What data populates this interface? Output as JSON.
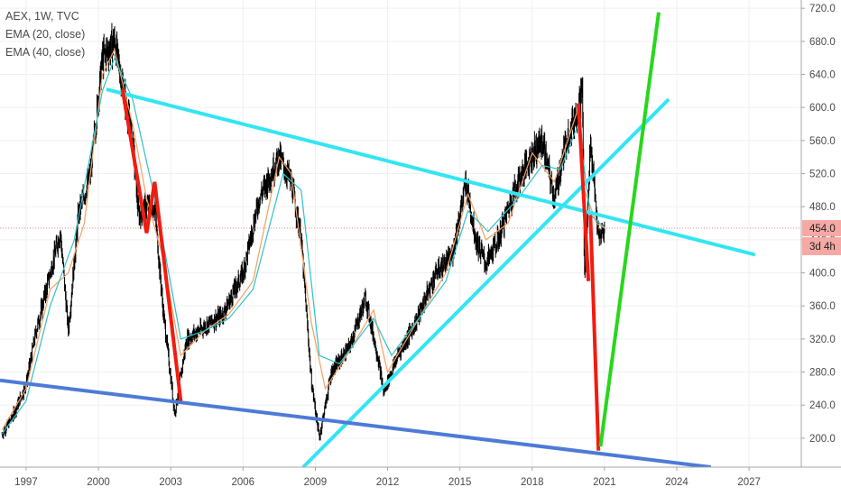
{
  "legend": {
    "symbol": "AEX, 1W, TVC",
    "ema20": "EMA (20, close)",
    "ema40": "EMA (40, close)"
  },
  "colors": {
    "background": "#ffffff",
    "grid": "#eef0f3",
    "candle": "#000000",
    "ema20": "#f5a064",
    "ema40": "#2fc1c9",
    "cyan_line": "#33e5f2",
    "blue_line": "#4d7bd6",
    "red_line": "#f21b0f",
    "green_line": "#28d71c",
    "price_marker": "#f08080",
    "price_label_bg": "#f5a9a5",
    "price_label_text": "#1f1f1f",
    "axis_text": "#4a4a4a"
  },
  "price_label": "454.0",
  "time_label": "3d 4h",
  "chart_data": {
    "type": "line",
    "series": [
      {
        "name": "AEX, 1W, TVC",
        "x": [
          "1996-01",
          "1996-06",
          "1997-01",
          "1997-06",
          "1998-01",
          "1998-06",
          "1998-10",
          "1999-03",
          "1999-09",
          "2000-03",
          "2000-09",
          "2001-03",
          "2001-06",
          "2001-09",
          "2002-01",
          "2002-05",
          "2002-09",
          "2003-03",
          "2003-09",
          "2004-06",
          "2005-03",
          "2006-01",
          "2006-09",
          "2007-07",
          "2008-01",
          "2008-06",
          "2008-11",
          "2009-03",
          "2009-09",
          "2010-06",
          "2011-02",
          "2011-08",
          "2011-11",
          "2012-06",
          "2013-03",
          "2014-01",
          "2014-09",
          "2015-04",
          "2015-09",
          "2016-02",
          "2016-08",
          "2017-04",
          "2017-12",
          "2018-06",
          "2018-12",
          "2019-06",
          "2019-12",
          "2020-02",
          "2020-03",
          "2020-06",
          "2020-10",
          "2021-01"
        ],
        "values": [
          205,
          225,
          265,
          330,
          400,
          450,
          330,
          470,
          520,
          660,
          680,
          600,
          560,
          470,
          480,
          480,
          360,
          230,
          320,
          335,
          350,
          400,
          490,
          540,
          510,
          440,
          270,
          200,
          280,
          310,
          370,
          300,
          255,
          300,
          340,
          400,
          420,
          510,
          440,
          410,
          440,
          500,
          540,
          560,
          490,
          560,
          600,
          625,
          390,
          560,
          440,
          454
        ]
      },
      {
        "name": "EMA (20, close)",
        "x": [
          "1996-01",
          "1997-01",
          "1998-01",
          "1998-10",
          "1999-06",
          "2000-03",
          "2000-09",
          "2001-06",
          "2002-01",
          "2002-09",
          "2003-06",
          "2004-06",
          "2005-06",
          "2006-06",
          "2007-07",
          "2008-01",
          "2008-11",
          "2009-06",
          "2010-06",
          "2011-06",
          "2012-01",
          "2013-01",
          "2014-06",
          "2015-05",
          "2016-02",
          "2017-01",
          "2018-01",
          "2018-12",
          "2019-12",
          "2020-03",
          "2020-09",
          "2021-01"
        ],
        "values": [
          210,
          260,
          380,
          400,
          460,
          640,
          670,
          580,
          490,
          420,
          300,
          330,
          350,
          390,
          540,
          520,
          340,
          260,
          305,
          355,
          280,
          330,
          400,
          495,
          440,
          460,
          545,
          510,
          600,
          500,
          460,
          454
        ]
      },
      {
        "name": "EMA (40, close)",
        "x": [
          "1996-01",
          "1997-01",
          "1998-01",
          "1999-01",
          "2000-03",
          "2000-09",
          "2001-06",
          "2002-06",
          "2003-06",
          "2004-06",
          "2005-06",
          "2006-06",
          "2007-09",
          "2008-06",
          "2009-03",
          "2010-01",
          "2011-06",
          "2012-03",
          "2013-06",
          "2014-06",
          "2015-05",
          "2016-03",
          "2017-06",
          "2018-06",
          "2019-03",
          "2019-12",
          "2020-06",
          "2021-01"
        ],
        "values": [
          205,
          245,
          360,
          440,
          620,
          660,
          610,
          480,
          320,
          330,
          345,
          380,
          520,
          500,
          300,
          290,
          345,
          300,
          350,
          390,
          475,
          450,
          490,
          530,
          525,
          580,
          470,
          455
        ]
      }
    ],
    "trendlines": [
      {
        "color": "cyan",
        "from": [
          "2000-05",
          622
        ],
        "to": [
          "2027-04",
          422
        ]
      },
      {
        "color": "cyan",
        "from": [
          "2008-07",
          165
        ],
        "to": [
          "2023-09",
          610
        ]
      },
      {
        "color": "blue",
        "from": [
          "1995-12",
          270
        ],
        "to": [
          "2025-06",
          165
        ]
      },
      {
        "color": "red",
        "from": [
          "2001-01",
          622
        ],
        "to": [
          "2002-01",
          448
        ]
      },
      {
        "color": "red",
        "from": [
          "2002-01",
          448
        ],
        "to": [
          "2002-05",
          510
        ]
      },
      {
        "color": "red",
        "from": [
          "2002-05",
          510
        ],
        "to": [
          "2003-06",
          245
        ]
      },
      {
        "color": "red",
        "from": [
          "2019-12",
          605
        ],
        "to": [
          "2020-05",
          390
        ]
      },
      {
        "color": "red",
        "from": [
          "2020-06",
          470
        ],
        "to": [
          "2020-10",
          185
        ]
      },
      {
        "color": "green",
        "from": [
          "2020-11",
          190
        ],
        "to": [
          "2023-04",
          715
        ]
      }
    ],
    "title": "",
    "xlabel": "",
    "ylabel": "",
    "x_ticks": [
      "1997",
      "2000",
      "2003",
      "2006",
      "2009",
      "2012",
      "2015",
      "2018",
      "2021",
      "2024",
      "2027"
    ],
    "y_ticks": [
      "720.0",
      "680.0",
      "640.0",
      "600.0",
      "560.0",
      "520.0",
      "480.0",
      "440.0",
      "400.0",
      "360.0",
      "320.0",
      "280.0",
      "240.0",
      "200.0"
    ],
    "ylim": [
      165,
      730
    ],
    "xlim": [
      "1995-12",
      "2029-03"
    ],
    "last_price": 454.0,
    "grid": true,
    "legend_position": "top-left"
  }
}
